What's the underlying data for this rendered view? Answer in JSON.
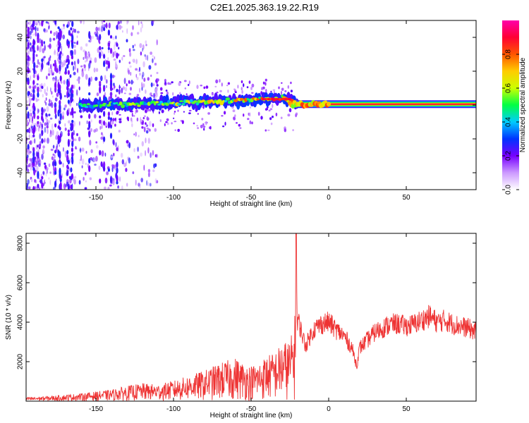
{
  "title": "C2E1.2025.363.19.22.R19",
  "chart_data": [
    {
      "type": "heatmap",
      "xlabel": "Height of straight line (km)",
      "ylabel": "Frequency (Hz)",
      "xlim": [
        -195,
        95
      ],
      "ylim": [
        -50,
        50
      ],
      "xticks": [
        -150,
        -100,
        -50,
        0,
        50
      ],
      "yticks": [
        -40,
        -20,
        0,
        20,
        40
      ],
      "colorbar": {
        "label": "Normalized spectral amplitude",
        "range": [
          0,
          1
        ],
        "ticks": [
          0.0,
          0.2,
          0.4,
          0.6,
          0.8
        ],
        "tick_labels": [
          "0.0",
          "0.2",
          "0.4",
          "0.6",
          "0.8"
        ],
        "colors": [
          "#ffffff",
          "#cc99ff",
          "#7700ff",
          "#0033ff",
          "#00ccff",
          "#00ff44",
          "#ccff00",
          "#ffcc00",
          "#ff5500",
          "#ff0033",
          "#ff00aa"
        ]
      },
      "trace": [
        {
          "x": -150,
          "f": 0.0,
          "a": 0.55
        },
        {
          "x": -120,
          "f": 0.5,
          "a": 0.6
        },
        {
          "x": -100,
          "f": 1.5,
          "a": 0.65
        },
        {
          "x": -80,
          "f": 2.0,
          "a": 0.7
        },
        {
          "x": -60,
          "f": 2.5,
          "a": 0.75
        },
        {
          "x": -40,
          "f": 3.5,
          "a": 0.85
        },
        {
          "x": -30,
          "f": 4.0,
          "a": 0.9
        },
        {
          "x": -20,
          "f": 1.0,
          "a": 0.95
        },
        {
          "x": 0,
          "f": 0.5,
          "a": 0.97
        },
        {
          "x": 50,
          "f": 0.5,
          "a": 0.98
        },
        {
          "x": 90,
          "f": 0.5,
          "a": 0.98
        }
      ]
    },
    {
      "type": "line",
      "xlabel": "Height of straight line (km)",
      "ylabel": "SNR (10 * v/v)",
      "xlim": [
        -195,
        95
      ],
      "ylim": [
        0,
        8500
      ],
      "xticks": [
        -150,
        -100,
        -50,
        0,
        50
      ],
      "yticks": [
        2000,
        4000,
        6000,
        8000
      ],
      "color": "#ee3333",
      "series": [
        {
          "name": "SNR",
          "x": [
            -195,
            -180,
            -160,
            -140,
            -130,
            -120,
            -110,
            -100,
            -90,
            -80,
            -70,
            -60,
            -55,
            -50,
            -45,
            -40,
            -35,
            -30,
            -25,
            -22,
            -21,
            -20,
            -15,
            -10,
            -5,
            0,
            5,
            10,
            15,
            18,
            20,
            25,
            30,
            35,
            40,
            45,
            50,
            55,
            60,
            65,
            70,
            75,
            80,
            85,
            90,
            95
          ],
          "y": [
            150,
            200,
            300,
            450,
            600,
            700,
            650,
            800,
            1000,
            1200,
            1500,
            1700,
            1500,
            1400,
            1500,
            1800,
            1900,
            2300,
            2400,
            3000,
            8500,
            4200,
            2800,
            3600,
            3900,
            4000,
            3600,
            3300,
            2700,
            1800,
            2700,
            3100,
            3500,
            3700,
            3900,
            3900,
            3800,
            3900,
            4100,
            4300,
            4000,
            4100,
            3900,
            3800,
            3700,
            3500
          ]
        }
      ]
    }
  ]
}
